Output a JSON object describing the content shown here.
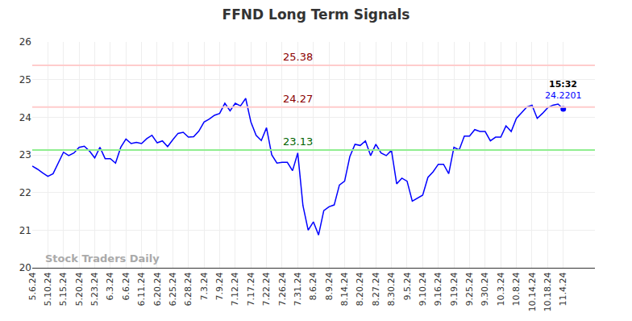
{
  "chart_data": {
    "type": "line",
    "title": "FFND Long Term Signals",
    "categories": [
      "5.6.24",
      null,
      null,
      "5.10.24",
      null,
      null,
      "5.15.24",
      null,
      null,
      "5.20.24",
      null,
      null,
      "5.23.24",
      null,
      null,
      "6.3.24",
      null,
      null,
      "6.6.24",
      null,
      null,
      "6.11.24",
      null,
      null,
      "6.20.24",
      null,
      null,
      "6.25.24",
      null,
      null,
      "6.28.24",
      null,
      null,
      "7.3.24",
      null,
      null,
      "7.9.24",
      null,
      null,
      "7.12.24",
      null,
      null,
      "7.17.24",
      null,
      null,
      "7.22.24",
      null,
      null,
      "7.26.24",
      null,
      null,
      "7.31.24",
      null,
      null,
      "8.6.24",
      null,
      null,
      "8.9.24",
      null,
      null,
      "8.14.24",
      null,
      null,
      "8.20.24",
      null,
      null,
      "8.27.24",
      null,
      null,
      "8.30.24",
      null,
      null,
      "9.5.24",
      null,
      null,
      "9.10.24",
      null,
      null,
      "9.16.24",
      null,
      null,
      "9.19.24",
      null,
      null,
      "9.25.24",
      null,
      null,
      "9.30.24",
      null,
      null,
      "10.3.24",
      null,
      null,
      "10.8.24",
      null,
      null,
      "10.14.24",
      null,
      null,
      "10.18.24",
      null,
      null,
      "11.4.24"
    ],
    "values": [
      22.7,
      22.62,
      22.52,
      22.43,
      22.5,
      22.8,
      23.07,
      22.98,
      23.05,
      23.2,
      23.23,
      23.1,
      22.92,
      23.2,
      22.9,
      22.9,
      22.78,
      23.2,
      23.42,
      23.3,
      23.33,
      23.3,
      23.43,
      23.52,
      23.32,
      23.37,
      23.22,
      23.4,
      23.57,
      23.6,
      23.47,
      23.48,
      23.63,
      23.87,
      23.95,
      24.05,
      24.1,
      24.37,
      24.17,
      24.37,
      24.3,
      24.5,
      23.87,
      23.52,
      23.38,
      23.72,
      23.0,
      22.78,
      22.8,
      22.8,
      22.58,
      23.05,
      21.65,
      21.0,
      21.22,
      20.87,
      21.52,
      21.62,
      21.67,
      22.2,
      22.3,
      22.95,
      23.28,
      23.25,
      23.37,
      22.98,
      23.28,
      23.05,
      22.98,
      23.12,
      22.23,
      22.38,
      22.3,
      21.77,
      21.85,
      21.93,
      22.4,
      22.55,
      22.75,
      22.75,
      22.5,
      23.2,
      23.13,
      23.5,
      23.5,
      23.67,
      23.62,
      23.62,
      23.37,
      23.47,
      23.47,
      23.77,
      23.62,
      23.97,
      24.12,
      24.27,
      24.32,
      23.97,
      24.1,
      24.25,
      24.32,
      24.35,
      24.2201
    ],
    "color": "#0000ff",
    "ylim": [
      20,
      26
    ],
    "yticks": [
      20,
      21,
      22,
      23,
      24,
      25,
      26
    ],
    "grid": true,
    "reference_lines": [
      {
        "value": 25.38,
        "color": "#ffcccc",
        "label_color": "#8b0000"
      },
      {
        "value": 24.27,
        "color": "#ffcccc",
        "label_color": "#8b0000"
      },
      {
        "value": 23.13,
        "color": "#90ee90",
        "label_color": "#006400"
      }
    ],
    "annotations": [
      "15:32"
    ],
    "watermark": "Stock Traders Daily"
  }
}
